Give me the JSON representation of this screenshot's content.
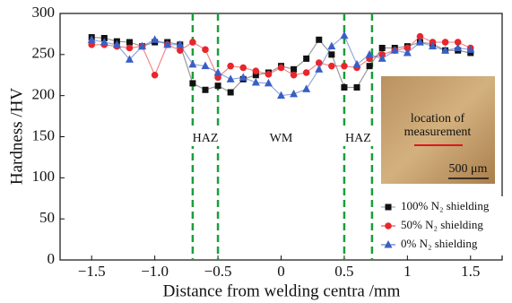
{
  "chart_data": {
    "type": "line",
    "xlabel": "Distance from welding centra /mm",
    "ylabel": "Hardness /HV",
    "x": [
      -1.5,
      -1.4,
      -1.3,
      -1.2,
      -1.1,
      -1.0,
      -0.9,
      -0.8,
      -0.7,
      -0.6,
      -0.5,
      -0.4,
      -0.3,
      -0.2,
      -0.1,
      0,
      0.1,
      0.2,
      0.3,
      0.4,
      0.5,
      0.6,
      0.7,
      0.8,
      0.9,
      1.0,
      1.1,
      1.2,
      1.3,
      1.4,
      1.5
    ],
    "series": [
      {
        "name": "100% N₂ shielding",
        "color": "#111111",
        "marker": "square",
        "values": [
          271,
          270,
          266,
          265,
          260,
          265,
          265,
          262,
          215,
          207,
          212,
          204,
          220,
          225,
          228,
          236,
          232,
          245,
          268,
          250,
          210,
          210,
          236,
          258,
          258,
          260,
          265,
          263,
          255,
          255,
          252
        ]
      },
      {
        "name": "50% N₂ shielding",
        "color": "#e8262b",
        "marker": "circle",
        "values": [
          262,
          262,
          260,
          258,
          260,
          225,
          262,
          255,
          265,
          256,
          222,
          236,
          234,
          230,
          226,
          234,
          225,
          228,
          240,
          236,
          236,
          234,
          245,
          250,
          255,
          258,
          272,
          265,
          265,
          265,
          258
        ]
      },
      {
        "name": "0% N₂ shielding",
        "color": "#3a5fc4",
        "marker": "triangle",
        "values": [
          268,
          265,
          262,
          244,
          260,
          268,
          262,
          262,
          238,
          236,
          228,
          220,
          222,
          216,
          215,
          200,
          202,
          208,
          232,
          260,
          273,
          238,
          250,
          245,
          255,
          252,
          265,
          260,
          255,
          258,
          256
        ]
      }
    ],
    "xlim": [
      -1.75,
      1.75
    ],
    "xticks": [
      {
        "value": -1.5,
        "label": "−1.5"
      },
      {
        "value": -1.0,
        "label": "−1.0"
      },
      {
        "value": -0.5,
        "label": "−0.5"
      },
      0,
      0.5,
      1.0,
      1.5
    ],
    "ylim": [
      0,
      300
    ],
    "yticks": [
      0,
      50,
      100,
      150,
      200,
      250,
      300
    ],
    "legend": "lower right",
    "vlines": {
      "color": "#1a9e3a",
      "values": [
        -0.7,
        -0.5,
        0.5,
        0.72
      ]
    },
    "annotations": [
      "HAZ",
      "WM",
      "HAZ"
    ],
    "inset": {
      "lines": [
        "location of",
        "measurement"
      ],
      "scale_bar": "500 μm"
    }
  }
}
